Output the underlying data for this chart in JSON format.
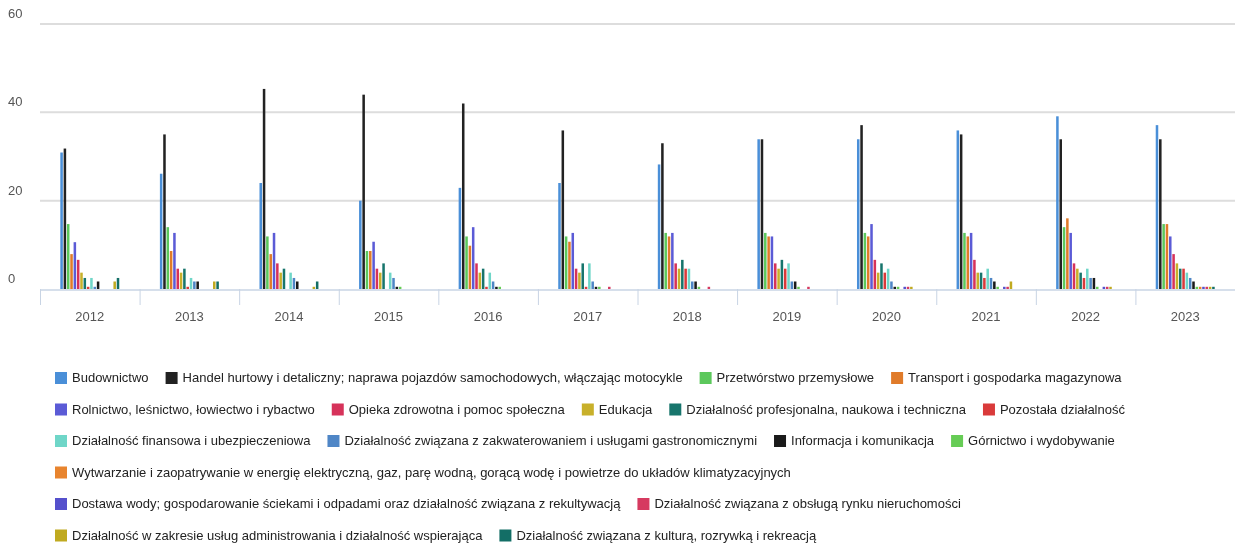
{
  "chart_data": {
    "type": "bar",
    "categories": [
      "2012",
      "2013",
      "2014",
      "2015",
      "2016",
      "2017",
      "2018",
      "2019",
      "2020",
      "2021",
      "2022",
      "2023"
    ],
    "ylim": [
      0,
      60
    ],
    "yticks": [
      0,
      20,
      40,
      60
    ],
    "grid": "y",
    "legend": "bottom",
    "series": [
      {
        "name": "Budownictwo",
        "color": "#4a8fd8",
        "values": [
          30.9,
          26.1,
          24.0,
          20.0,
          22.9,
          24.0,
          28.2,
          33.9,
          33.9,
          35.9,
          39.1,
          37.1
        ]
      },
      {
        "name": "Handel hurtowy i detaliczny; naprawa pojazdów samochodowych, włączając motocykle",
        "color": "#222222",
        "values": [
          31.8,
          35.0,
          45.3,
          44.0,
          42.0,
          35.9,
          33.0,
          33.9,
          37.1,
          35.0,
          33.9,
          33.9
        ]
      },
      {
        "name": "Przetwórstwo przemysłowe",
        "color": "#5cc85c",
        "values": [
          14.7,
          14.0,
          11.9,
          8.6,
          11.9,
          11.9,
          12.7,
          12.7,
          12.7,
          12.7,
          14.0,
          14.7
        ]
      },
      {
        "name": "Transport i gospodarka magazynowa",
        "color": "#e07b2a",
        "values": [
          7.9,
          8.6,
          7.9,
          8.6,
          9.8,
          10.7,
          11.9,
          11.9,
          11.9,
          11.9,
          16.0,
          14.7
        ]
      },
      {
        "name": "Rolnictwo, leśnictwo, łowiectwo i rybactwo",
        "color": "#5b5bd6",
        "values": [
          10.6,
          12.7,
          12.7,
          10.7,
          14.0,
          12.7,
          12.7,
          11.9,
          14.7,
          12.7,
          12.7,
          11.9
        ]
      },
      {
        "name": "Opieka zdrowotna i pomoc społeczna",
        "color": "#d6325a",
        "values": [
          6.6,
          4.6,
          5.8,
          4.6,
          5.8,
          4.6,
          5.8,
          5.8,
          6.6,
          6.6,
          5.8,
          7.9
        ]
      },
      {
        "name": "Edukacja",
        "color": "#c8b02a",
        "values": [
          3.7,
          3.7,
          3.7,
          3.7,
          3.7,
          3.7,
          4.6,
          4.6,
          3.7,
          3.7,
          4.6,
          5.8
        ]
      },
      {
        "name": "Działalność profesjonalna, naukowa i techniczna",
        "color": "#17756c",
        "values": [
          2.5,
          4.6,
          4.6,
          5.8,
          4.6,
          5.8,
          6.6,
          6.6,
          5.8,
          3.7,
          3.7,
          4.6
        ]
      },
      {
        "name": "Pozostała działalność",
        "color": "#d93a3a",
        "values": [
          0.5,
          0.5,
          0,
          0,
          0.5,
          0.5,
          4.6,
          4.6,
          3.7,
          2.5,
          2.5,
          4.6
        ]
      },
      {
        "name": "Działalność finansowa i ubezpieczeniowa",
        "color": "#6fd6c8",
        "values": [
          2.5,
          2.5,
          3.7,
          3.7,
          3.7,
          5.8,
          4.6,
          5.8,
          4.6,
          4.6,
          4.6,
          3.7
        ]
      },
      {
        "name": "Działalność związana z zakwaterowaniem i usługami gastronomicznymi",
        "color": "#4f86c6",
        "values": [
          0.5,
          1.7,
          2.5,
          2.5,
          1.7,
          1.7,
          1.7,
          1.7,
          1.7,
          2.5,
          2.5,
          2.5
        ]
      },
      {
        "name": "Informacja i komunikacja",
        "color": "#1a1a1a",
        "values": [
          1.7,
          1.7,
          1.7,
          0.5,
          0.5,
          0.5,
          1.7,
          1.7,
          0.5,
          1.7,
          2.5,
          1.7
        ]
      },
      {
        "name": "Górnictwo i wydobywanie",
        "color": "#66cc55",
        "values": [
          0,
          0,
          0,
          0.5,
          0.5,
          0.5,
          0.5,
          0.5,
          0.5,
          0.5,
          0.5,
          0.5
        ]
      },
      {
        "name": "Wytwarzanie i zaopatrywanie w energię elektryczną, gaz, parę wodną, gorącą wodę i powietrze do układów klimatyzacyjnych",
        "color": "#e8842e",
        "values": [
          0,
          0,
          0,
          0,
          0,
          0,
          0,
          0,
          0,
          0,
          0,
          0.5
        ]
      },
      {
        "name": "Dostawa wody; gospodarowanie ściekami i odpadami oraz działalność związana z rekultywacją",
        "color": "#5550cc",
        "values": [
          0,
          0,
          0,
          0,
          0,
          0,
          0,
          0,
          0.5,
          0.5,
          0.5,
          0.5
        ]
      },
      {
        "name": "Działalność związana z obsługą rynku nieruchomości",
        "color": "#d63a60",
        "values": [
          0,
          0,
          0,
          0,
          0,
          0.5,
          0.5,
          0.5,
          0.5,
          0.5,
          0.5,
          0.5
        ]
      },
      {
        "name": "Działalność w zakresie usług administrowania i działalność wspierająca",
        "color": "#c0aa20",
        "values": [
          1.7,
          1.7,
          0.5,
          0,
          0,
          0,
          0,
          0,
          0.5,
          1.7,
          0.5,
          0.5
        ]
      },
      {
        "name": "Działalność związana z kulturą, rozrywką i rekreacją",
        "color": "#136e66",
        "values": [
          2.5,
          1.7,
          1.7,
          0,
          0,
          0,
          0,
          0,
          0,
          0,
          0,
          0.5
        ]
      }
    ]
  }
}
